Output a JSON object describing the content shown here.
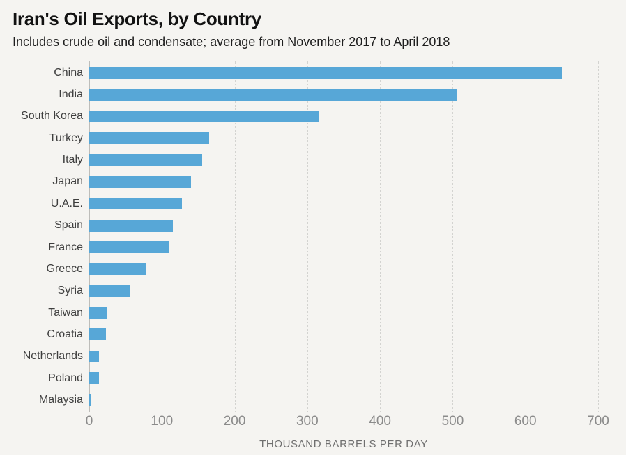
{
  "chart_data": {
    "type": "bar",
    "orientation": "horizontal",
    "title": "Iran's Oil Exports, by Country",
    "subtitle": "Includes crude oil and condensate; average from November 2017 to April 2018",
    "categories": [
      "China",
      "India",
      "South Korea",
      "Turkey",
      "Italy",
      "Japan",
      "U.A.E.",
      "Spain",
      "France",
      "Greece",
      "Syria",
      "Taiwan",
      "Croatia",
      "Netherlands",
      "Poland",
      "Malaysia"
    ],
    "values": [
      650,
      505,
      315,
      165,
      155,
      140,
      128,
      115,
      110,
      78,
      57,
      24,
      23,
      13,
      13,
      2
    ],
    "xlabel": "THOUSAND BARRELS PER DAY",
    "xlim": [
      0,
      700
    ],
    "xticks": [
      0,
      100,
      200,
      300,
      400,
      500,
      600,
      700
    ],
    "grid": "vertical-dotted",
    "legend": "none",
    "bar_color": "#57a7d7",
    "background_color": "#f5f4f1"
  }
}
